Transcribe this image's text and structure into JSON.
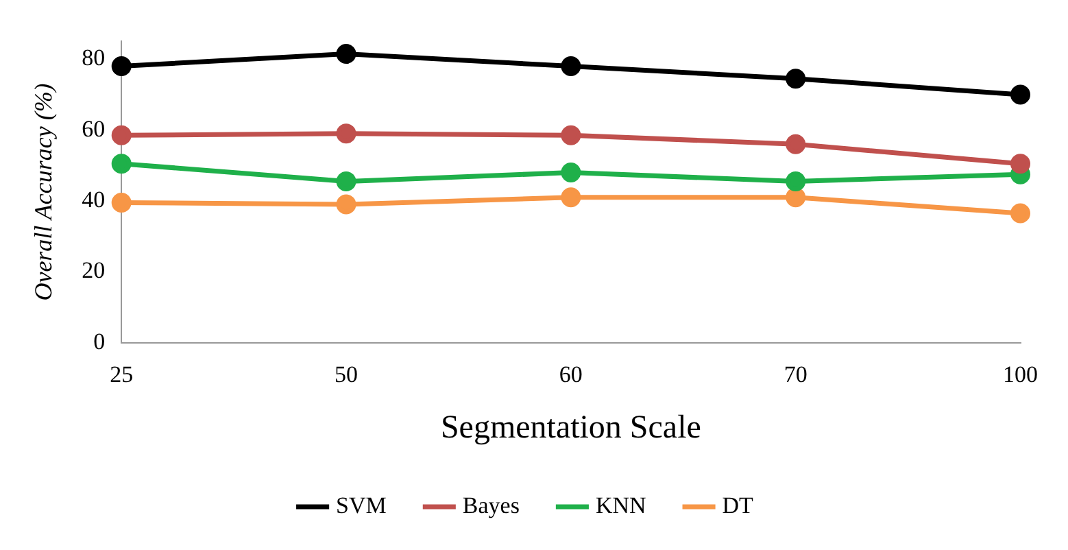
{
  "chart_data": {
    "type": "line",
    "xlabel": "Segmentation Scale",
    "ylabel": "Overall Accuracy (%)",
    "categories": [
      "25",
      "50",
      "60",
      "70",
      "100"
    ],
    "series": [
      {
        "name": "SVM",
        "color": "#000000",
        "values": [
          78,
          81.5,
          78,
          74.5,
          70
        ]
      },
      {
        "name": "Bayes",
        "color": "#c0504d",
        "values": [
          58.5,
          59,
          58.5,
          56,
          50.5
        ]
      },
      {
        "name": "KNN",
        "color": "#1fb04a",
        "values": [
          50.5,
          45.5,
          48,
          45.5,
          47.5
        ]
      },
      {
        "name": "DT",
        "color": "#f79646",
        "values": [
          39.5,
          39,
          41,
          41,
          36.5
        ]
      }
    ],
    "ylim": [
      0,
      85
    ],
    "yticks": [
      0,
      20,
      40,
      60,
      80
    ],
    "grid": false,
    "legend": "bottom",
    "marker": "circle",
    "line_style": "solid"
  }
}
